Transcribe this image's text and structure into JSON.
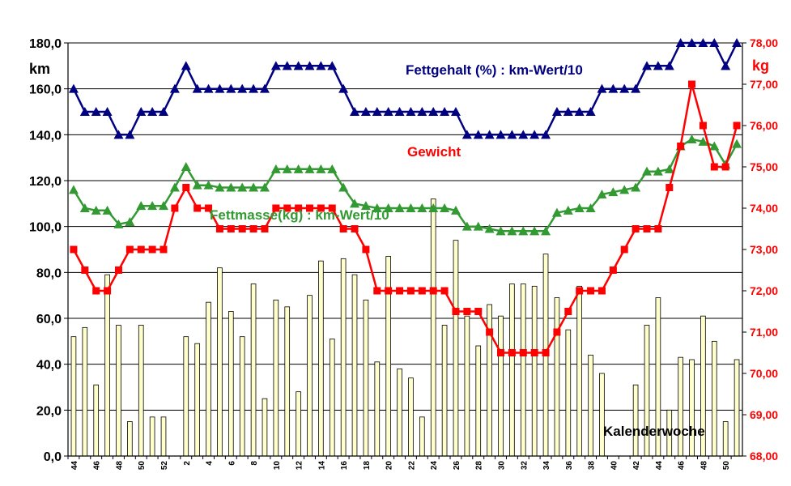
{
  "chart_data": {
    "type": "bar+line",
    "title": "",
    "xlabel": "Kalenderwoche",
    "ylabel_left": "km",
    "ylabel_right": "kg",
    "ylim_left": [
      0,
      180
    ],
    "ylim_right": [
      68,
      78
    ],
    "yticks_left": [
      "0,0",
      "20,0",
      "40,0",
      "60,0",
      "80,0",
      "100,0",
      "120,0",
      "140,0",
      "160,0",
      "180,0"
    ],
    "yticks_right": [
      "68,00",
      "69,00",
      "70,00",
      "71,00",
      "72,00",
      "73,00",
      "74,00",
      "75,00",
      "76,00",
      "77,00",
      "78,00"
    ],
    "grid": true,
    "categories": [
      "44",
      "45",
      "46",
      "47",
      "48",
      "49",
      "50",
      "51",
      "52",
      "1",
      "2",
      "3",
      "4",
      "5",
      "6",
      "7",
      "8",
      "9",
      "10",
      "11",
      "12",
      "13",
      "14",
      "15",
      "16",
      "17",
      "18",
      "19",
      "20",
      "21",
      "22",
      "23",
      "24",
      "25",
      "26",
      "27",
      "28",
      "29",
      "30",
      "31",
      "32",
      "33",
      "34",
      "35",
      "36",
      "37",
      "38",
      "39",
      "40",
      "41",
      "42",
      "43",
      "44",
      "45",
      "46",
      "47",
      "48",
      "49",
      "50",
      "51"
    ],
    "xtick_labels": [
      "44",
      "",
      "46",
      "",
      "48",
      "",
      "50",
      "",
      "52",
      "",
      "2",
      "",
      "4",
      "",
      "6",
      "",
      "8",
      "",
      "10",
      "",
      "12",
      "",
      "14",
      "",
      "16",
      "",
      "18",
      "",
      "20",
      "",
      "22",
      "",
      "24",
      "",
      "26",
      "",
      "28",
      "",
      "30",
      "",
      "32",
      "",
      "34",
      "",
      "36",
      "",
      "38",
      "",
      "40",
      "",
      "42",
      "",
      "44",
      "",
      "46",
      "",
      "48",
      "",
      "50",
      ""
    ],
    "series": [
      {
        "name": "km",
        "kind": "bar",
        "axis": "left",
        "color": "#ffffcc",
        "values": [
          52,
          56,
          31,
          79,
          57,
          15,
          57,
          17,
          17,
          0,
          52,
          49,
          67,
          82,
          63,
          52,
          75,
          25,
          68,
          65,
          28,
          70,
          85,
          51,
          86,
          79,
          68,
          41,
          87,
          38,
          34,
          17,
          112,
          57,
          94,
          61,
          48,
          66,
          61,
          75,
          75,
          74,
          88,
          69,
          55,
          74,
          44,
          36,
          0,
          0,
          31,
          57,
          69,
          20,
          43,
          42,
          61,
          50,
          15,
          42
        ]
      },
      {
        "name": "Fettgehalt (%) : km-Wert/10",
        "kind": "line",
        "axis": "left",
        "color": "#000080",
        "values": [
          160,
          150,
          150,
          150,
          140,
          140,
          150,
          150,
          150,
          160,
          170,
          160,
          160,
          160,
          160,
          160,
          160,
          160,
          170,
          170,
          170,
          170,
          170,
          170,
          160,
          150,
          150,
          150,
          150,
          150,
          150,
          150,
          150,
          150,
          150,
          140,
          140,
          140,
          140,
          140,
          140,
          140,
          140,
          150,
          150,
          150,
          150,
          160,
          160,
          160,
          160,
          170,
          170,
          170,
          180,
          180,
          180,
          180,
          170,
          180
        ]
      },
      {
        "name": "Fettmasse(kg) : km-Wert/10",
        "kind": "line",
        "axis": "left",
        "color": "#339933",
        "values": [
          116,
          108,
          107,
          107,
          101,
          102,
          109,
          109,
          109,
          117,
          126,
          118,
          118,
          117,
          117,
          117,
          117,
          117,
          125,
          125,
          125,
          125,
          125,
          125,
          117,
          110,
          109,
          108,
          108,
          108,
          108,
          108,
          108,
          108,
          107,
          100,
          100,
          99,
          98,
          98,
          98,
          98,
          98,
          106,
          107,
          108,
          108,
          114,
          115,
          116,
          117,
          124,
          124,
          125,
          135,
          138,
          137,
          135,
          127,
          136
        ]
      },
      {
        "name": "Gewicht",
        "kind": "line",
        "axis": "right",
        "color": "#ff0000",
        "values": [
          73.0,
          72.5,
          72.0,
          72.0,
          72.5,
          73.0,
          73.0,
          73.0,
          73.0,
          74.0,
          74.5,
          74.0,
          74.0,
          73.5,
          73.5,
          73.5,
          73.5,
          73.5,
          74.0,
          74.0,
          74.0,
          74.0,
          74.0,
          74.0,
          73.5,
          73.5,
          73.0,
          72.0,
          72.0,
          72.0,
          72.0,
          72.0,
          72.0,
          72.0,
          71.5,
          71.5,
          71.5,
          71.0,
          70.5,
          70.5,
          70.5,
          70.5,
          70.5,
          71.0,
          71.5,
          72.0,
          72.0,
          72.0,
          72.5,
          73.0,
          73.5,
          73.5,
          73.5,
          74.5,
          75.5,
          77.0,
          76.0,
          75.0,
          75.0,
          76.0
        ]
      }
    ],
    "annotations": [
      {
        "text": "Fettgehalt (%) : km-Wert/10",
        "color": "#000080"
      },
      {
        "text": "Gewicht",
        "color": "#ff0000"
      },
      {
        "text": "Fettmasse(kg) : km-Wert/10",
        "color": "#339933"
      },
      {
        "text": "Kalenderwoche",
        "color": "#000000"
      }
    ]
  }
}
